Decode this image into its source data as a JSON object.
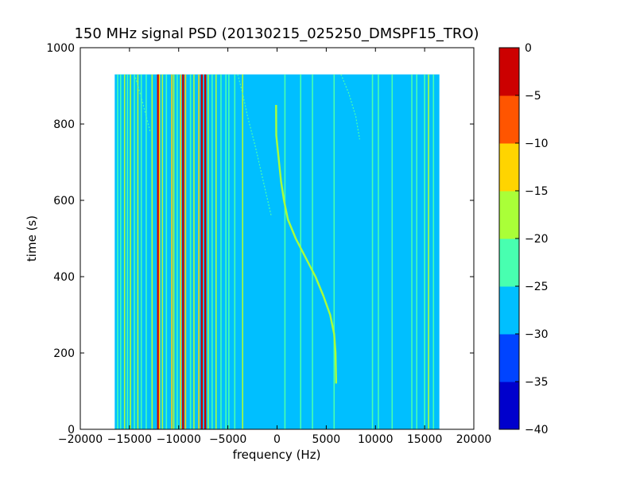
{
  "chart_data": {
    "type": "heatmap",
    "title": "150 MHz signal PSD (20130215_025250_DMSPF15_TRO)",
    "xlabel": "frequency (Hz)",
    "ylabel": "time (s)",
    "xlim": [
      -20000,
      20000
    ],
    "ylim": [
      0,
      1000
    ],
    "x_ticks": [
      -20000,
      -15000,
      -10000,
      -5000,
      0,
      5000,
      10000,
      15000,
      20000
    ],
    "y_ticks": [
      0,
      200,
      400,
      600,
      800,
      1000
    ],
    "data_extent": {
      "freq": [
        -16500,
        16500
      ],
      "time": [
        0,
        930
      ]
    },
    "background_level": -27.5,
    "colorbar": {
      "levels": [
        -40,
        -35,
        -30,
        -25,
        -20,
        -15,
        -10,
        -5,
        0
      ],
      "tick_labels": [
        "0",
        "−5",
        "−10",
        "−15",
        "−20",
        "−25",
        "−30",
        "−35",
        "−40"
      ],
      "colors": [
        "#0000cc",
        "#0044ff",
        "#00bfff",
        "#48ffb0",
        "#aaff38",
        "#ffd400",
        "#ff5500",
        "#cc0000"
      ]
    },
    "vertical_lines": [
      {
        "f": -16200,
        "level": -22
      },
      {
        "f": -15900,
        "level": -22
      },
      {
        "f": -15500,
        "level": -18
      },
      {
        "f": -15200,
        "level": -22
      },
      {
        "f": -14900,
        "level": -18
      },
      {
        "f": -14500,
        "level": -22
      },
      {
        "f": -14150,
        "level": -18
      },
      {
        "f": -13800,
        "level": -22
      },
      {
        "f": -13300,
        "level": -22
      },
      {
        "f": -12700,
        "level": -18
      },
      {
        "f": -12100,
        "level": -3
      },
      {
        "f": -11950,
        "level": -12
      },
      {
        "f": -11650,
        "level": -18
      },
      {
        "f": -11250,
        "level": -22
      },
      {
        "f": -10700,
        "level": -12
      },
      {
        "f": -10500,
        "level": -18
      },
      {
        "f": -10150,
        "level": -22
      },
      {
        "f": -9800,
        "level": -12
      },
      {
        "f": -9550,
        "level": -3
      },
      {
        "f": -9300,
        "level": -12
      },
      {
        "f": -8800,
        "level": -22
      },
      {
        "f": -8450,
        "level": -18
      },
      {
        "f": -7950,
        "level": -12
      },
      {
        "f": -7650,
        "level": -3
      },
      {
        "f": -7300,
        "level": -3
      },
      {
        "f": -7000,
        "level": -18
      },
      {
        "f": -6600,
        "level": -22
      },
      {
        "f": -6200,
        "level": -18
      },
      {
        "f": -5700,
        "level": -22
      },
      {
        "f": -5200,
        "level": -22
      },
      {
        "f": -4900,
        "level": -22
      },
      {
        "f": -4300,
        "level": -22
      },
      {
        "f": -3500,
        "level": -18
      },
      {
        "f": 800,
        "level": -22
      },
      {
        "f": 2400,
        "level": -22
      },
      {
        "f": 3600,
        "level": -22
      },
      {
        "f": 5800,
        "level": -22
      },
      {
        "f": 9700,
        "level": -22
      },
      {
        "f": 10300,
        "level": -22
      },
      {
        "f": 11700,
        "level": -22
      },
      {
        "f": 13700,
        "level": -22
      },
      {
        "f": 14200,
        "level": -22
      },
      {
        "f": 15000,
        "level": -22
      },
      {
        "f": 15400,
        "level": -18
      },
      {
        "f": 15900,
        "level": -22
      }
    ],
    "doppler_curve": {
      "level": -17,
      "points": [
        [
          6000,
          120
        ],
        [
          5950,
          200
        ],
        [
          5800,
          250
        ],
        [
          5400,
          300
        ],
        [
          4700,
          350
        ],
        [
          3900,
          400
        ],
        [
          2900,
          450
        ],
        [
          1900,
          500
        ],
        [
          1100,
          550
        ],
        [
          700,
          600
        ],
        [
          400,
          650
        ],
        [
          200,
          700
        ],
        [
          -80,
          770
        ],
        [
          -100,
          850
        ]
      ]
    },
    "faint_tracks": [
      {
        "level": -22,
        "points": [
          [
            -14500,
            930
          ],
          [
            -13800,
            870
          ],
          [
            -13300,
            820
          ],
          [
            -12900,
            780
          ]
        ]
      },
      {
        "level": -22,
        "points": [
          [
            -4000,
            930
          ],
          [
            -3500,
            880
          ],
          [
            -3000,
            820
          ],
          [
            -2200,
            740
          ],
          [
            -1400,
            650
          ],
          [
            -600,
            560
          ]
        ]
      },
      {
        "level": -22,
        "points": [
          [
            6500,
            930
          ],
          [
            7300,
            880
          ],
          [
            8000,
            820
          ],
          [
            8400,
            760
          ]
        ]
      }
    ]
  }
}
